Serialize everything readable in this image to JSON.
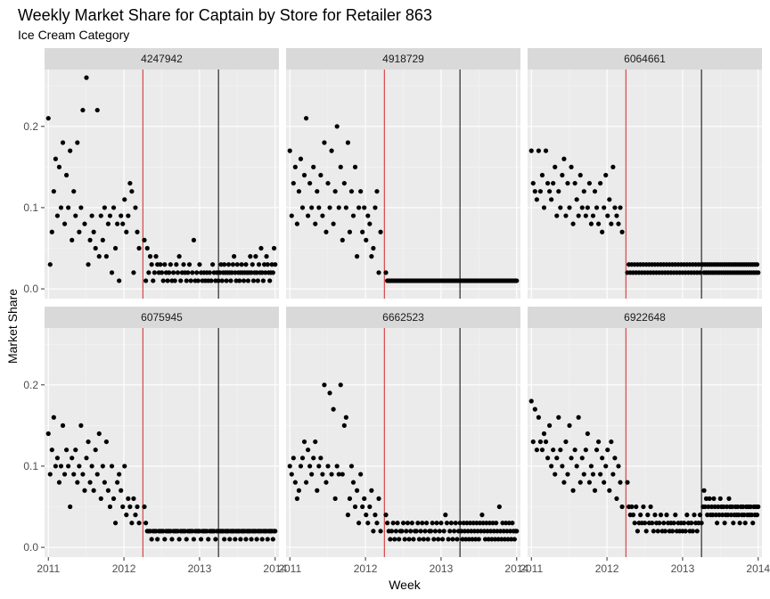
{
  "chart_data": {
    "type": "scatter",
    "title": "Weekly Market Share for Captain by Store for Retailer 863",
    "subtitle": "Ice Cream Category",
    "xlabel": "Week",
    "ylabel": "Market Share",
    "x_ticks": [
      2011,
      2012,
      2013,
      2014
    ],
    "y_ticks": [
      0.0,
      0.1,
      0.2
    ],
    "y_tick_labels": [
      "0.0",
      "0.1",
      "0.2"
    ],
    "xlim": [
      2010.95,
      2014.05
    ],
    "ylim": [
      -0.012,
      0.27
    ],
    "vlines": [
      {
        "x": 2012.25,
        "color": "#d62728"
      },
      {
        "x": 2013.25,
        "color": "#000000"
      }
    ],
    "facets": [
      {
        "label": "4247942",
        "pre": [
          0.21,
          0.03,
          0.07,
          0.12,
          0.16,
          0.09,
          0.15,
          0.1,
          0.18,
          0.08,
          0.14,
          0.1,
          0.17,
          0.06,
          0.12,
          0.09,
          0.18,
          0.07,
          0.1,
          0.22,
          0.08,
          0.26,
          0.03,
          0.06,
          0.09,
          0.07,
          0.05,
          0.22,
          0.04,
          0.09,
          0.06,
          0.1,
          0.04,
          0.08,
          0.09,
          0.02,
          0.1,
          0.05,
          0.08,
          0.01,
          0.09,
          0.08,
          0.11,
          0.07,
          0.09,
          0.13,
          0.12,
          0.02,
          0.1,
          0.07,
          0.05
        ],
        "mid": [
          0.06,
          0.01,
          0.05,
          0.02,
          0.04,
          0.03,
          0.01,
          0.02,
          0.04,
          0.03,
          0.02,
          0.03,
          0.02,
          0.01,
          0.03,
          0.02,
          0.01,
          0.02,
          0.03,
          0.01,
          0.02,
          0.01,
          0.03,
          0.02,
          0.04,
          0.01,
          0.02,
          0.03,
          0.02,
          0.01,
          0.02,
          0.03,
          0.01,
          0.02,
          0.06,
          0.01,
          0.02,
          0.01,
          0.03,
          0.02,
          0.01,
          0.02,
          0.01,
          0.02,
          0.01,
          0.02,
          0.01,
          0.03,
          0.02,
          0.01,
          0.02,
          0.01
        ],
        "post": [
          0.02,
          0.03,
          0.01,
          0.02,
          0.03,
          0.02,
          0.01,
          0.02,
          0.03,
          0.02,
          0.01,
          0.02,
          0.03,
          0.04,
          0.02,
          0.01,
          0.03,
          0.02,
          0.01,
          0.02,
          0.03,
          0.02,
          0.01,
          0.02,
          0.03,
          0.02,
          0.01,
          0.02,
          0.04,
          0.02,
          0.03,
          0.01,
          0.02,
          0.04,
          0.02,
          0.01,
          0.03,
          0.02,
          0.05,
          0.02,
          0.01,
          0.03,
          0.02,
          0.04,
          0.03,
          0.02,
          0.01,
          0.02,
          0.03,
          0.02,
          0.05,
          0.03
        ]
      },
      {
        "label": "4918729",
        "pre": [
          0.17,
          0.09,
          0.13,
          0.15,
          0.08,
          0.12,
          0.16,
          0.1,
          0.14,
          0.21,
          0.09,
          0.13,
          0.1,
          0.15,
          0.08,
          0.12,
          0.1,
          0.14,
          0.09,
          0.18,
          0.07,
          0.13,
          0.1,
          0.17,
          0.08,
          0.12,
          0.2,
          0.1,
          0.15,
          0.06,
          0.13,
          0.1,
          0.18,
          0.07,
          0.12,
          0.09,
          0.15,
          0.04,
          0.1,
          0.12,
          0.07,
          0.1,
          0.06,
          0.09,
          0.08,
          0.04,
          0.05,
          0.1,
          0.12,
          0.02,
          0.07
        ],
        "mid": [
          0.02,
          0.01,
          0.01,
          0.01,
          0.01,
          0.01,
          0.01,
          0.01,
          0.01,
          0.01,
          0.01,
          0.01,
          0.01,
          0.01,
          0.01,
          0.01,
          0.01,
          0.01,
          0.01,
          0.01,
          0.01,
          0.01,
          0.01,
          0.01,
          0.01,
          0.01,
          0.01,
          0.01,
          0.01,
          0.01,
          0.01,
          0.01,
          0.01,
          0.01,
          0.01,
          0.01,
          0.01,
          0.01,
          0.01,
          0.01,
          0.01,
          0.01,
          0.01,
          0.01,
          0.01,
          0.01,
          0.01,
          0.01,
          0.01,
          0.01,
          0.01,
          0.01
        ],
        "post": [
          0.01,
          0.01,
          0.01,
          0.01,
          0.01,
          0.01,
          0.01,
          0.01,
          0.01,
          0.01,
          0.01,
          0.01,
          0.01,
          0.01,
          0.01,
          0.01,
          0.01,
          0.01,
          0.01,
          0.01,
          0.01,
          0.01,
          0.01,
          0.01,
          0.01,
          0.01,
          0.01,
          0.01,
          0.01,
          0.01,
          0.01,
          0.01,
          0.01,
          0.01,
          0.01,
          0.01,
          0.01,
          0.01,
          0.01,
          0.01,
          0.01,
          0.01,
          0.01,
          0.01,
          0.01,
          0.01,
          0.01,
          0.01,
          0.01,
          0.01,
          0.01,
          0.01
        ]
      },
      {
        "label": "6064661",
        "pre": [
          0.17,
          0.13,
          0.12,
          0.11,
          0.17,
          0.12,
          0.14,
          0.1,
          0.17,
          0.13,
          0.12,
          0.11,
          0.13,
          0.15,
          0.09,
          0.12,
          0.1,
          0.14,
          0.16,
          0.09,
          0.13,
          0.1,
          0.15,
          0.08,
          0.13,
          0.11,
          0.09,
          0.14,
          0.1,
          0.12,
          0.09,
          0.1,
          0.13,
          0.08,
          0.09,
          0.12,
          0.1,
          0.08,
          0.13,
          0.07,
          0.1,
          0.14,
          0.09,
          0.11,
          0.08,
          0.15,
          0.1,
          0.09,
          0.08,
          0.1,
          0.07
        ],
        "mid": [
          0.02,
          0.03,
          0.02,
          0.03,
          0.02,
          0.03,
          0.02,
          0.03,
          0.02,
          0.03,
          0.02,
          0.03,
          0.02,
          0.03,
          0.02,
          0.03,
          0.02,
          0.03,
          0.02,
          0.03,
          0.02,
          0.03,
          0.02,
          0.03,
          0.02,
          0.03,
          0.02,
          0.03,
          0.02,
          0.03,
          0.02,
          0.03,
          0.02,
          0.03,
          0.02,
          0.03,
          0.02,
          0.03,
          0.02,
          0.03,
          0.02,
          0.03,
          0.02,
          0.03,
          0.02,
          0.03,
          0.02,
          0.03,
          0.02,
          0.03,
          0.02,
          0.03
        ],
        "post": [
          0.03,
          0.02,
          0.03,
          0.02,
          0.03,
          0.02,
          0.03,
          0.02,
          0.03,
          0.02,
          0.03,
          0.02,
          0.03,
          0.02,
          0.03,
          0.02,
          0.03,
          0.02,
          0.03,
          0.02,
          0.03,
          0.02,
          0.03,
          0.02,
          0.03,
          0.02,
          0.03,
          0.02,
          0.03,
          0.02,
          0.03,
          0.02,
          0.03,
          0.02,
          0.03,
          0.02,
          0.03,
          0.02,
          0.03,
          0.02,
          0.03,
          0.02,
          0.03,
          0.02,
          0.03,
          0.02,
          0.03,
          0.02,
          0.03,
          0.02,
          0.03,
          0.02
        ]
      },
      {
        "label": "6075945",
        "pre": [
          0.14,
          0.09,
          0.12,
          0.16,
          0.1,
          0.11,
          0.08,
          0.1,
          0.15,
          0.09,
          0.12,
          0.1,
          0.05,
          0.11,
          0.09,
          0.12,
          0.08,
          0.1,
          0.15,
          0.09,
          0.07,
          0.11,
          0.13,
          0.08,
          0.1,
          0.07,
          0.12,
          0.09,
          0.14,
          0.06,
          0.1,
          0.08,
          0.13,
          0.07,
          0.05,
          0.1,
          0.06,
          0.03,
          0.08,
          0.09,
          0.07,
          0.05,
          0.1,
          0.04,
          0.06,
          0.05,
          0.03,
          0.06,
          0.04,
          0.05,
          0.03
        ],
        "mid": [
          0.05,
          0.03,
          0.02,
          0.02,
          0.02,
          0.01,
          0.02,
          0.02,
          0.02,
          0.01,
          0.02,
          0.02,
          0.02,
          0.02,
          0.01,
          0.02,
          0.02,
          0.02,
          0.02,
          0.01,
          0.02,
          0.02,
          0.02,
          0.02,
          0.01,
          0.02,
          0.02,
          0.02,
          0.02,
          0.01,
          0.02,
          0.02,
          0.02,
          0.02,
          0.01,
          0.02,
          0.02,
          0.02,
          0.02,
          0.01,
          0.02,
          0.02,
          0.02,
          0.02,
          0.01,
          0.02,
          0.02,
          0.02,
          0.02,
          0.01,
          0.02,
          0.02
        ],
        "post": [
          0.02,
          0.02,
          0.02,
          0.02,
          0.01,
          0.02,
          0.02,
          0.02,
          0.02,
          0.01,
          0.02,
          0.02,
          0.02,
          0.02,
          0.01,
          0.02,
          0.02,
          0.02,
          0.02,
          0.01,
          0.02,
          0.02,
          0.02,
          0.02,
          0.01,
          0.02,
          0.02,
          0.02,
          0.02,
          0.01,
          0.02,
          0.02,
          0.02,
          0.02,
          0.01,
          0.02,
          0.02,
          0.02,
          0.02,
          0.01,
          0.02,
          0.02,
          0.02,
          0.02,
          0.01,
          0.02,
          0.02,
          0.02,
          0.02,
          0.01,
          0.02,
          0.02
        ]
      },
      {
        "label": "6662523",
        "pre": [
          0.1,
          0.09,
          0.11,
          0.08,
          0.06,
          0.07,
          0.1,
          0.11,
          0.13,
          0.08,
          0.12,
          0.1,
          0.09,
          0.11,
          0.13,
          0.07,
          0.1,
          0.11,
          0.09,
          0.2,
          0.08,
          0.1,
          0.19,
          0.09,
          0.17,
          0.06,
          0.1,
          0.09,
          0.2,
          0.09,
          0.15,
          0.16,
          0.04,
          0.06,
          0.1,
          0.08,
          0.05,
          0.07,
          0.03,
          0.09,
          0.05,
          0.06,
          0.04,
          0.03,
          0.05,
          0.07,
          0.02,
          0.04,
          0.03,
          0.06,
          0.02
        ],
        "mid": [
          0.04,
          0.03,
          0.02,
          0.01,
          0.02,
          0.03,
          0.01,
          0.02,
          0.03,
          0.01,
          0.02,
          0.02,
          0.03,
          0.01,
          0.02,
          0.03,
          0.01,
          0.02,
          0.03,
          0.01,
          0.02,
          0.02,
          0.03,
          0.01,
          0.02,
          0.03,
          0.01,
          0.02,
          0.03,
          0.01,
          0.02,
          0.02,
          0.03,
          0.01,
          0.02,
          0.03,
          0.01,
          0.02,
          0.03,
          0.01,
          0.02,
          0.04,
          0.03,
          0.01,
          0.02,
          0.03,
          0.01,
          0.02,
          0.03,
          0.01,
          0.02,
          0.03
        ],
        "post": [
          0.02,
          0.01,
          0.03,
          0.02,
          0.01,
          0.03,
          0.02,
          0.01,
          0.03,
          0.02,
          0.01,
          0.03,
          0.02,
          0.01,
          0.03,
          0.02,
          0.01,
          0.03,
          0.02,
          0.04,
          0.03,
          0.02,
          0.01,
          0.03,
          0.02,
          0.01,
          0.03,
          0.02,
          0.01,
          0.03,
          0.02,
          0.01,
          0.03,
          0.02,
          0.01,
          0.05,
          0.02,
          0.01,
          0.03,
          0.02,
          0.01,
          0.03,
          0.02,
          0.01,
          0.03,
          0.02,
          0.01,
          0.03,
          0.02,
          0.01,
          0.02,
          0.02
        ]
      },
      {
        "label": "6922648",
        "pre": [
          0.18,
          0.13,
          0.17,
          0.12,
          0.16,
          0.13,
          0.12,
          0.14,
          0.13,
          0.11,
          0.15,
          0.1,
          0.12,
          0.09,
          0.11,
          0.16,
          0.12,
          0.1,
          0.08,
          0.13,
          0.09,
          0.15,
          0.11,
          0.07,
          0.12,
          0.1,
          0.16,
          0.08,
          0.11,
          0.09,
          0.12,
          0.14,
          0.08,
          0.1,
          0.09,
          0.07,
          0.12,
          0.13,
          0.09,
          0.11,
          0.08,
          0.1,
          0.12,
          0.07,
          0.13,
          0.09,
          0.11,
          0.06,
          0.1,
          0.08,
          0.05
        ],
        "mid": [
          0.08,
          0.05,
          0.04,
          0.05,
          0.04,
          0.03,
          0.05,
          0.02,
          0.03,
          0.04,
          0.03,
          0.05,
          0.03,
          0.02,
          0.04,
          0.03,
          0.05,
          0.03,
          0.02,
          0.04,
          0.03,
          0.02,
          0.03,
          0.04,
          0.02,
          0.03,
          0.02,
          0.04,
          0.03,
          0.02,
          0.03,
          0.02,
          0.03,
          0.04,
          0.02,
          0.03,
          0.02,
          0.03,
          0.02,
          0.03,
          0.02,
          0.04,
          0.03,
          0.02,
          0.03,
          0.02,
          0.04,
          0.03,
          0.02,
          0.03,
          0.04,
          0.03
        ],
        "post": [
          0.05,
          0.07,
          0.05,
          0.06,
          0.04,
          0.05,
          0.06,
          0.04,
          0.05,
          0.04,
          0.06,
          0.05,
          0.04,
          0.03,
          0.05,
          0.04,
          0.06,
          0.05,
          0.04,
          0.05,
          0.03,
          0.04,
          0.05,
          0.04,
          0.06,
          0.05,
          0.04,
          0.05,
          0.03,
          0.04,
          0.05,
          0.04,
          0.05,
          0.04,
          0.03,
          0.05,
          0.04,
          0.05,
          0.04,
          0.03,
          0.05,
          0.04,
          0.05,
          0.04,
          0.05,
          0.04,
          0.03,
          0.05,
          0.04,
          0.05,
          0.04,
          0.05
        ]
      }
    ]
  }
}
